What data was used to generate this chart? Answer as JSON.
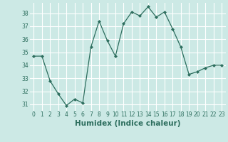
{
  "x": [
    0,
    1,
    2,
    3,
    4,
    5,
    6,
    7,
    8,
    9,
    10,
    11,
    12,
    13,
    14,
    15,
    16,
    17,
    18,
    19,
    20,
    21,
    22,
    23
  ],
  "y": [
    34.7,
    34.7,
    32.8,
    31.8,
    30.9,
    31.4,
    31.1,
    35.4,
    37.4,
    35.9,
    34.7,
    37.2,
    38.1,
    37.8,
    38.5,
    37.7,
    38.1,
    36.8,
    35.4,
    33.3,
    33.5,
    33.8,
    34.0,
    34.0
  ],
  "line_color": "#2d6e5e",
  "marker": "D",
  "marker_size": 2.0,
  "bg_color": "#cce9e5",
  "grid_color": "#ffffff",
  "grid_line_color": "#b8d8d4",
  "xlabel": "Humidex (Indice chaleur)",
  "ylim": [
    30.5,
    38.8
  ],
  "xlim": [
    -0.5,
    23.5
  ],
  "yticks": [
    31,
    32,
    33,
    34,
    35,
    36,
    37,
    38
  ],
  "xticks": [
    0,
    1,
    2,
    3,
    4,
    5,
    6,
    7,
    8,
    9,
    10,
    11,
    12,
    13,
    14,
    15,
    16,
    17,
    18,
    19,
    20,
    21,
    22,
    23
  ],
  "tick_fontsize": 5.5,
  "xlabel_fontsize": 7.5,
  "tick_color": "#2d6e5e",
  "label_color": "#2d6e5e"
}
